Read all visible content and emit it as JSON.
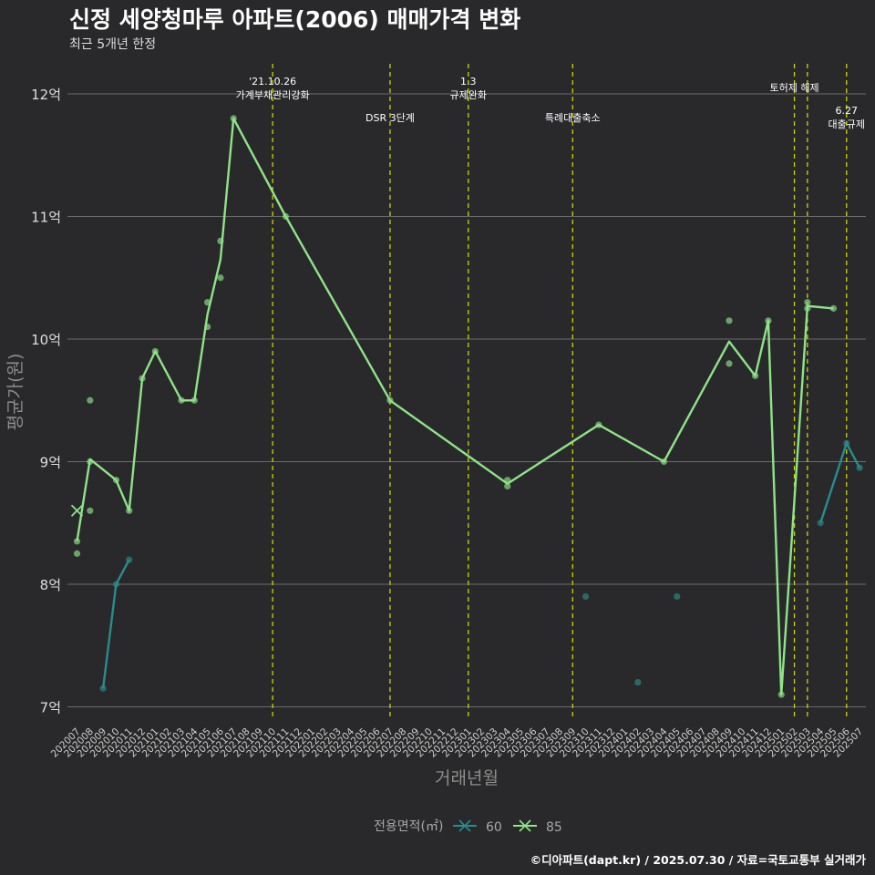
{
  "header": {
    "title": "신정 세양청마루 아파트(2006) 매매가격 변화",
    "subtitle": "최근 5개년 한정"
  },
  "footer": {
    "credit": "©디아파트(dapt.kr) / 2025.07.30 / 자료=국토교통부 실거래가"
  },
  "chart_data": {
    "type": "line",
    "title": "신정 세양청마루 아파트(2006) 매매가격 변화",
    "subtitle": "최근 5개년 한정",
    "xlabel": "거래년월",
    "ylabel": "평균가(원)",
    "ylim": [
      6.8,
      12.3
    ],
    "y_ticks": [
      {
        "value": 7,
        "label": "7억"
      },
      {
        "value": 8,
        "label": "8억"
      },
      {
        "value": 9,
        "label": "9억"
      },
      {
        "value": 10,
        "label": "10억"
      },
      {
        "value": 11,
        "label": "11억"
      },
      {
        "value": 12,
        "label": "12억"
      }
    ],
    "categories": [
      "202007",
      "202008",
      "202009",
      "202010",
      "202011",
      "202012",
      "202101",
      "202102",
      "202103",
      "202104",
      "202105",
      "202106",
      "202107",
      "202108",
      "202109",
      "202110",
      "202111",
      "202112",
      "202201",
      "202202",
      "202203",
      "202204",
      "202205",
      "202206",
      "202207",
      "202208",
      "202209",
      "202210",
      "202211",
      "202212",
      "202301",
      "202302",
      "202303",
      "202304",
      "202305",
      "202306",
      "202307",
      "202308",
      "202309",
      "202310",
      "202311",
      "202312",
      "202401",
      "202402",
      "202403",
      "202404",
      "202405",
      "202406",
      "202407",
      "202408",
      "202409",
      "202410",
      "202411",
      "202412",
      "202501",
      "202502",
      "202503",
      "202504",
      "202505",
      "202506",
      "202507"
    ],
    "legend_title": "전용면적(㎡)",
    "series": [
      {
        "name": "60",
        "color": "#2a8c8c",
        "line": [
          [
            "202009",
            7.15
          ],
          [
            "202010",
            8.0
          ],
          [
            "202011",
            8.2
          ]
        ],
        "points": [
          [
            "202009",
            7.15
          ],
          [
            "202010",
            8.0
          ],
          [
            "202011",
            8.2
          ],
          [
            "202310",
            7.9
          ],
          [
            "202402",
            7.2
          ],
          [
            "202405",
            7.9
          ],
          [
            "202504",
            8.5
          ],
          [
            "202506",
            9.15
          ],
          [
            "202507",
            8.95
          ]
        ],
        "line2": [
          [
            "202504",
            8.5
          ],
          [
            "202506",
            9.15
          ],
          [
            "202507",
            8.95
          ]
        ]
      },
      {
        "name": "85",
        "color": "#8fe388",
        "line": [
          [
            "202007",
            8.35
          ],
          [
            "202008",
            9.02
          ],
          [
            "202010",
            8.85
          ],
          [
            "202011",
            8.6
          ],
          [
            "202012",
            9.68
          ],
          [
            "202101",
            9.9
          ],
          [
            "202103",
            9.5
          ],
          [
            "202104",
            9.5
          ],
          [
            "202105",
            10.2
          ],
          [
            "202106",
            10.65
          ],
          [
            "202107",
            11.8
          ],
          [
            "202111",
            11.0
          ],
          [
            "202207",
            9.5
          ],
          [
            "202304",
            8.82
          ],
          [
            "202311",
            9.3
          ],
          [
            "202404",
            9.0
          ],
          [
            "202409",
            9.98
          ],
          [
            "202411",
            9.7
          ],
          [
            "202412",
            10.15
          ],
          [
            "202501",
            7.1
          ],
          [
            "202503",
            10.27
          ],
          [
            "202505",
            10.25
          ]
        ],
        "points": [
          [
            "202007",
            8.35
          ],
          [
            "202007",
            8.25
          ],
          [
            "202008",
            9.5
          ],
          [
            "202008",
            8.6
          ],
          [
            "202008",
            9.0
          ],
          [
            "202010",
            8.85
          ],
          [
            "202011",
            8.6
          ],
          [
            "202012",
            9.68
          ],
          [
            "202101",
            9.9
          ],
          [
            "202103",
            9.5
          ],
          [
            "202104",
            9.5
          ],
          [
            "202105",
            10.3
          ],
          [
            "202105",
            10.1
          ],
          [
            "202106",
            10.8
          ],
          [
            "202106",
            10.5
          ],
          [
            "202107",
            11.8
          ],
          [
            "202111",
            11.0
          ],
          [
            "202207",
            9.5
          ],
          [
            "202304",
            8.85
          ],
          [
            "202304",
            8.8
          ],
          [
            "202311",
            9.3
          ],
          [
            "202404",
            9.0
          ],
          [
            "202409",
            10.15
          ],
          [
            "202409",
            9.8
          ],
          [
            "202411",
            9.7
          ],
          [
            "202412",
            10.15
          ],
          [
            "202501",
            7.1
          ],
          [
            "202503",
            10.3
          ],
          [
            "202503",
            10.25
          ],
          [
            "202505",
            10.25
          ]
        ]
      }
    ],
    "cross_marker": {
      "series": "85",
      "x": "202007",
      "value": 8.6
    },
    "events": [
      {
        "x": "202110",
        "lines": [
          "'21.10.26",
          "가계부채관리강화"
        ],
        "row": 0
      },
      {
        "x": "202207",
        "lines": [
          "DSR 3단계"
        ],
        "row": 2
      },
      {
        "x": "202301",
        "lines": [
          "1.3",
          "규제완화"
        ],
        "row": 0
      },
      {
        "x": "202309",
        "lines": [
          "특례대출축소"
        ],
        "row": 2
      },
      {
        "x": "202502",
        "lines": [
          "토허제 해제"
        ],
        "row": 1
      },
      {
        "x": "202503",
        "lines": [],
        "row": 1
      },
      {
        "x": "202506",
        "lines": [
          "6.27",
          "대출규제"
        ],
        "row": 3
      }
    ]
  }
}
